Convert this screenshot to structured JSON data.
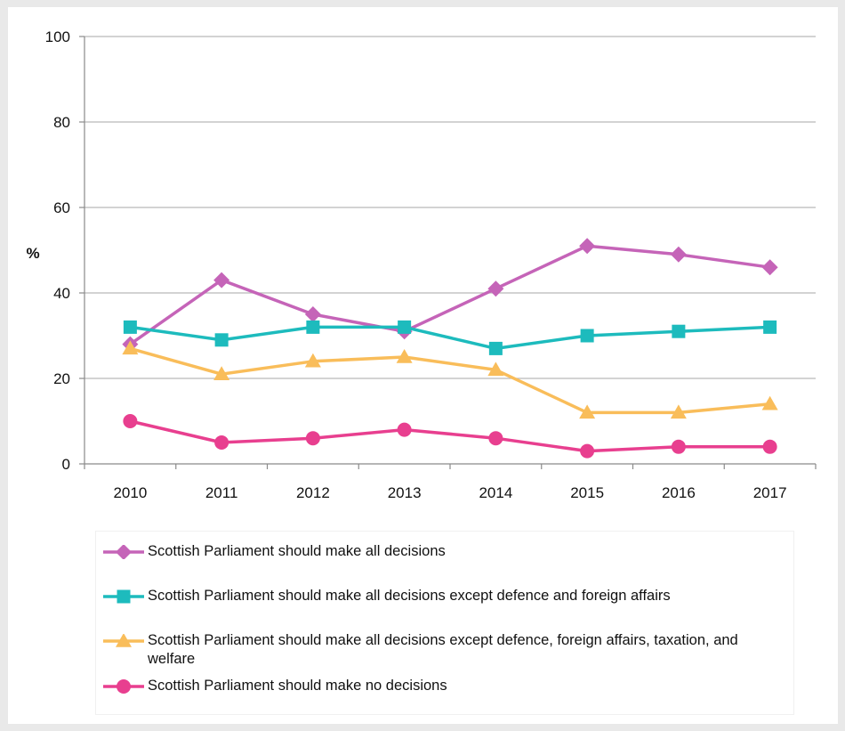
{
  "chart_data": {
    "type": "line",
    "ylabel": "%",
    "ylim": [
      0,
      100
    ],
    "yticks": [
      0,
      20,
      40,
      60,
      80,
      100
    ],
    "categories": [
      "2010",
      "2011",
      "2012",
      "2013",
      "2014",
      "2015",
      "2016",
      "2017"
    ],
    "grid": "horizontal",
    "legend_position": "bottom",
    "series": [
      {
        "name": "Scottish Parliament should make all decisions",
        "color": "#c564b8",
        "marker": "diamond",
        "values": [
          28,
          43,
          35,
          31,
          41,
          51,
          49,
          46
        ]
      },
      {
        "name": "Scottish Parliament should make all decisions except defence and foreign affairs",
        "color": "#1dbbbd",
        "marker": "square",
        "values": [
          32,
          29,
          32,
          32,
          27,
          30,
          31,
          32
        ]
      },
      {
        "name": "Scottish Parliament should make all decisions except defence, foreign affairs, taxation, and welfare",
        "color": "#f9bd5a",
        "marker": "triangle",
        "values": [
          27,
          21,
          24,
          25,
          22,
          12,
          12,
          14
        ]
      },
      {
        "name": "Scottish Parliament should make no decisions",
        "color": "#e83f8f",
        "marker": "circle",
        "values": [
          10,
          5,
          6,
          8,
          6,
          3,
          4,
          4
        ]
      }
    ]
  }
}
